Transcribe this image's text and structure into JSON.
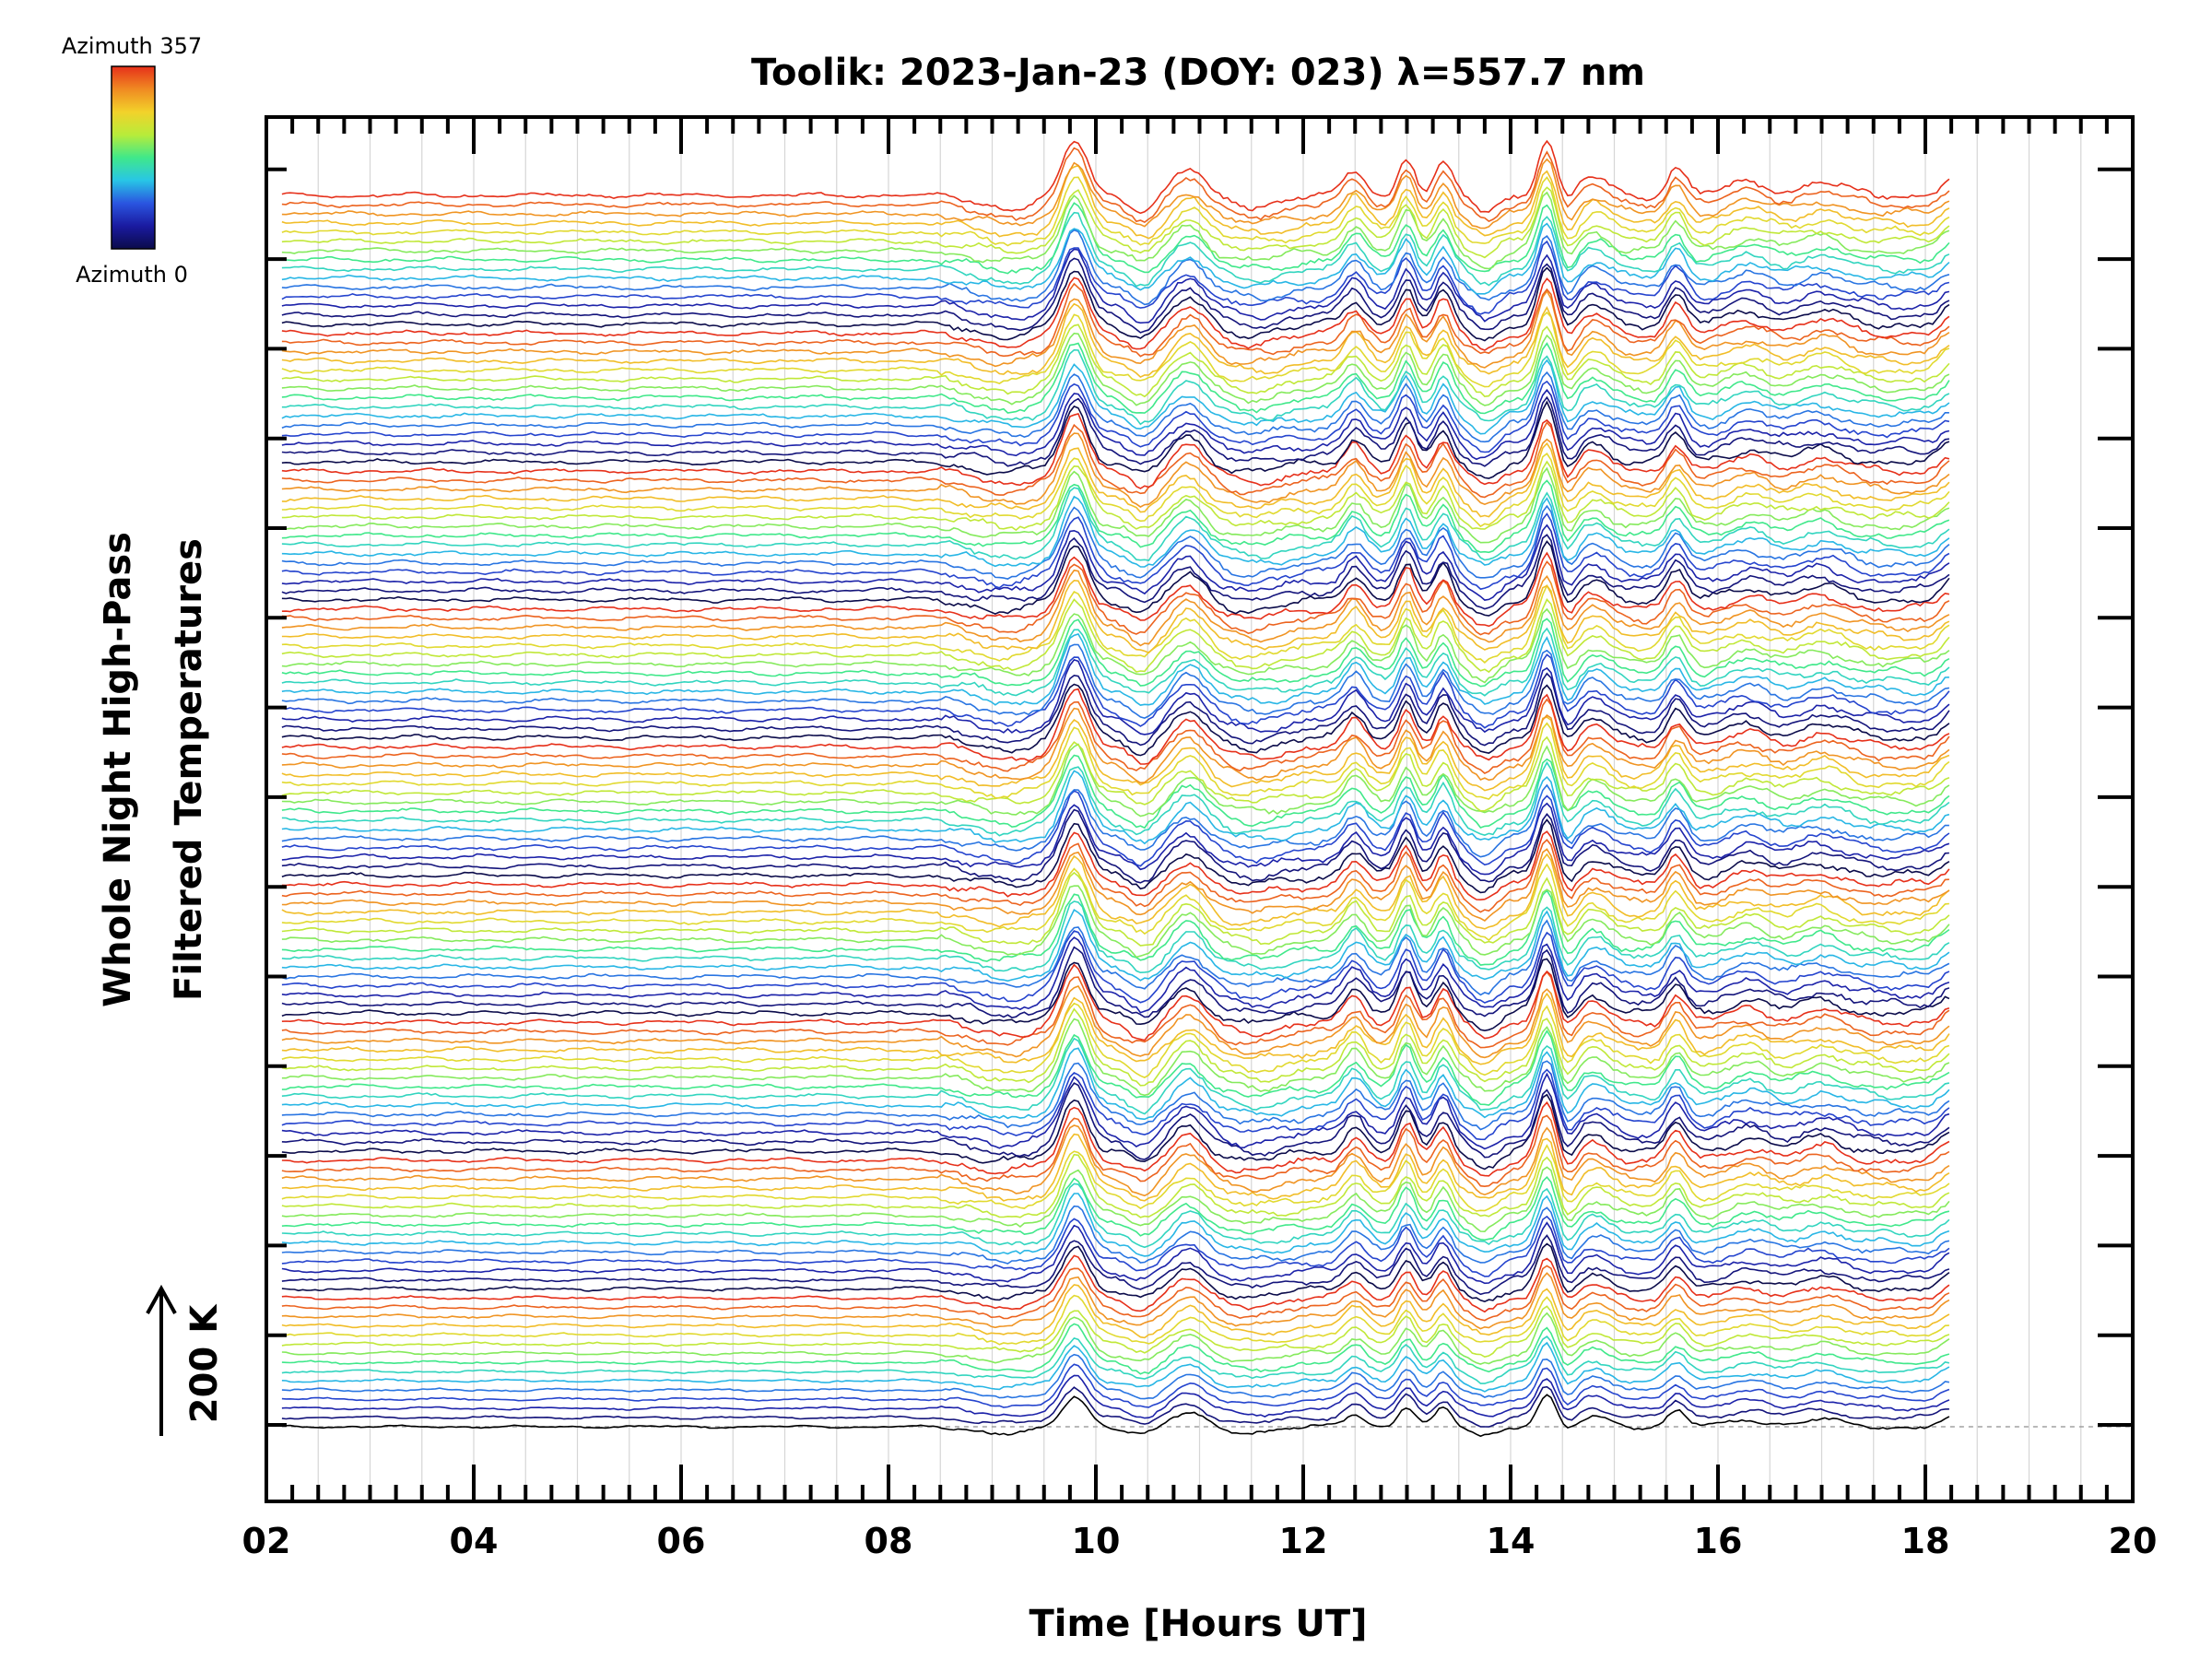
{
  "chart_data": {
    "type": "line",
    "title": "Toolik: 2023-Jan-23 (DOY: 023) λ=557.7 nm",
    "xlabel": "Time [Hours UT]",
    "ylabel": [
      "Whole Night High-Pass",
      "Filtered Temperatures"
    ],
    "scale_label": "200 K",
    "xlim": [
      2,
      20
    ],
    "x_ticks": [
      "02",
      "04",
      "06",
      "08",
      "10",
      "12",
      "14",
      "16",
      "18",
      "20"
    ],
    "data_x_range": [
      2.15,
      18.25
    ],
    "grid": true,
    "colorbar": {
      "top_label": "Azimuth  357",
      "bottom_label": "Azimuth  0",
      "colors": [
        "#0b0b4a",
        "#1a1aa0",
        "#2a55e0",
        "#28c6e6",
        "#40e88a",
        "#b8ec3a",
        "#f2d22a",
        "#f08a22",
        "#e6301a"
      ]
    },
    "series_count": 135,
    "groups": 9,
    "disturbance_peaks_hours": [
      9.8,
      10.9,
      12.5,
      13.0,
      13.35,
      14.35,
      14.8,
      15.6,
      16.3,
      17.0,
      18.25
    ]
  }
}
